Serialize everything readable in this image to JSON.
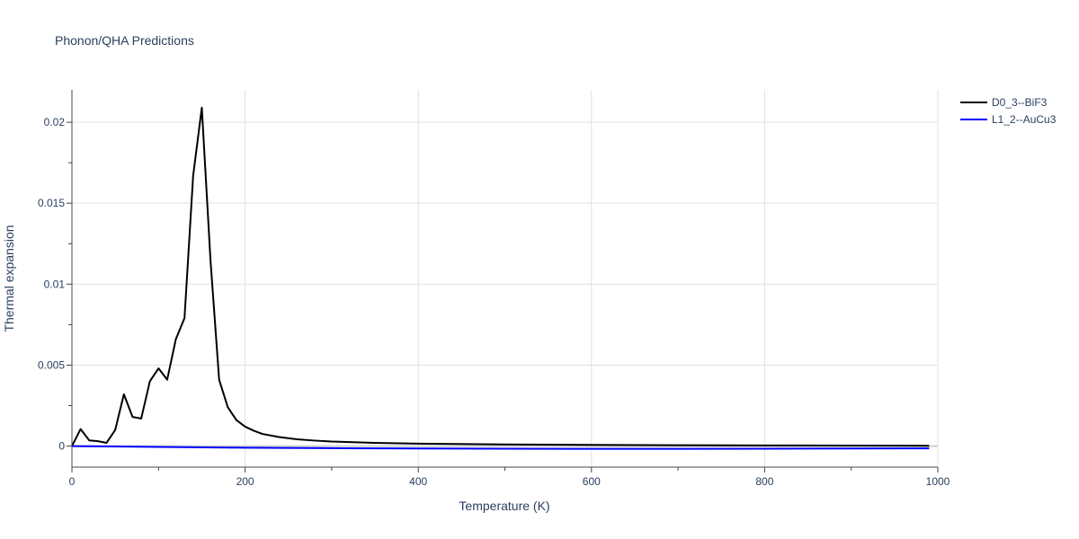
{
  "chart_data": {
    "type": "line",
    "title": "Phonon/QHA Predictions",
    "xlabel": "Temperature (K)",
    "ylabel": "Thermal expansion",
    "xlim": [
      0,
      1000
    ],
    "ylim": [
      -0.0013,
      0.022
    ],
    "x_ticks": [
      0,
      200,
      400,
      600,
      800,
      1000
    ],
    "x_tick_labels": [
      "0",
      "200",
      "400",
      "600",
      "800",
      "1000"
    ],
    "y_ticks": [
      0,
      0.005,
      0.01,
      0.015,
      0.02
    ],
    "y_tick_labels": [
      "0",
      "0.005",
      "0.01",
      "0.015",
      "0.02"
    ],
    "grid": true,
    "legend_position": "top-right",
    "series": [
      {
        "name": "D0_3--BiF3",
        "color": "#000000",
        "x": [
          0,
          10,
          20,
          30,
          40,
          50,
          60,
          70,
          80,
          90,
          100,
          110,
          120,
          130,
          140,
          150,
          160,
          170,
          180,
          190,
          200,
          210,
          220,
          240,
          260,
          280,
          300,
          350,
          400,
          500,
          600,
          700,
          800,
          900,
          990
        ],
        "y": [
          0.0,
          0.00105,
          0.00035,
          0.0003,
          0.0002,
          0.001,
          0.0032,
          0.0018,
          0.0017,
          0.004,
          0.0048,
          0.0041,
          0.0066,
          0.0079,
          0.0167,
          0.0209,
          0.0115,
          0.0041,
          0.0024,
          0.0016,
          0.0012,
          0.00095,
          0.00075,
          0.00055,
          0.00042,
          0.00034,
          0.00028,
          0.0002,
          0.00015,
          0.0001,
          7e-05,
          5e-05,
          4e-05,
          3e-05,
          2e-05
        ]
      },
      {
        "name": "L1_2--AuCu3",
        "color": "#0000ff",
        "x": [
          0,
          100,
          200,
          300,
          400,
          500,
          600,
          700,
          800,
          900,
          990
        ],
        "y": [
          0.0,
          -5e-05,
          -0.0001,
          -0.00013,
          -0.00015,
          -0.00016,
          -0.00017,
          -0.00017,
          -0.00016,
          -0.00015,
          -0.00014
        ]
      }
    ]
  }
}
